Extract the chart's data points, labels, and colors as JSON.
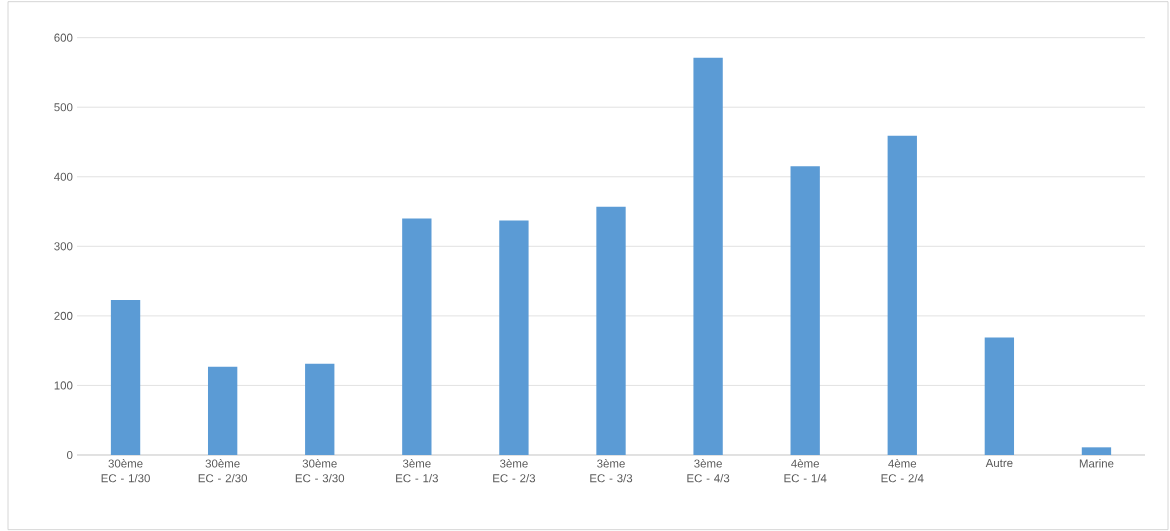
{
  "chart_data": {
    "type": "bar",
    "categories": [
      "30ème EC - 1/30",
      "30ème EC - 2/30",
      "30ème EC - 3/30",
      "3ème EC - 1/3",
      "3ème EC - 2/3",
      "3ème EC - 3/3",
      "3ème EC - 4/3",
      "4ème EC - 1/4",
      "4ème EC - 2/4",
      "Autre",
      "Marine"
    ],
    "values": [
      223,
      127,
      131,
      340,
      337,
      357,
      571,
      415,
      459,
      169,
      11
    ],
    "color": "#5b9bd5",
    "ylim": [
      0,
      600
    ],
    "yticks": [
      0,
      100,
      200,
      300,
      400,
      500,
      600
    ],
    "grid": "y"
  }
}
